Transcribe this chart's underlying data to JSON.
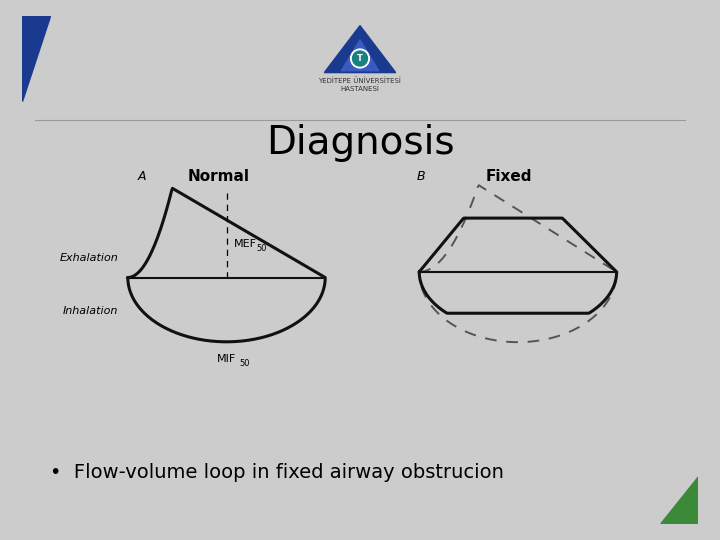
{
  "title": "Diagnosis",
  "title_fontsize": 28,
  "title_fontweight": "normal",
  "bg_color": "#cccccc",
  "slide_bg": "#f0f0f0",
  "inner_bg": "#f5f5f5",
  "bullet_text": "Flow-volume loop in fixed airway obstrucion",
  "bullet_fontsize": 14,
  "label_A": "A",
  "label_B": "B",
  "label_normal": "Normal",
  "label_fixed": "Fixed",
  "label_exhalation": "Exhalation",
  "label_inhalation": "Inhalation",
  "line_color": "#111111",
  "dashed_color": "#555555",
  "header_line_color": "#999999",
  "accent_blue": "#1a3a8f",
  "accent_green": "#3a8a3a"
}
